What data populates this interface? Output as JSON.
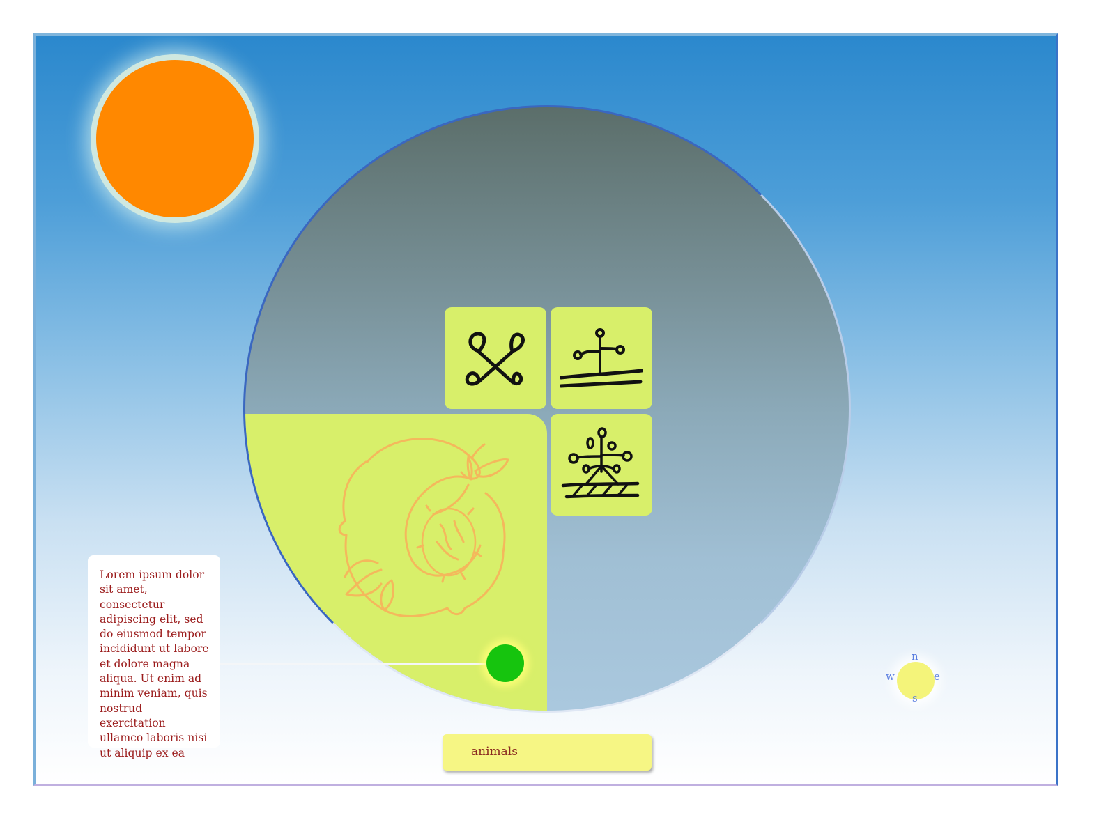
{
  "note": {
    "text": "Lorem ipsum dolor sit amet, consectetur adipiscing elit, sed do eiusmod tempor incididunt ut labore et dolore magna aliqua. Ut enim ad minim veniam, quis nostrud exercitation ullamco laboris nisi ut aliquip ex ea"
  },
  "category_field": {
    "value": "animals"
  },
  "compass": {
    "north": "n",
    "south": "s",
    "east": "e",
    "west": "w"
  },
  "icons": {
    "sun": "sun-icon",
    "peach": "peach-illustration",
    "tile_1": "crossed-symbol-icon",
    "tile_2": "horizon-symbol-icon",
    "tile_3": "tree-symbol-icon",
    "marker": "location-marker-icon"
  },
  "colors": {
    "sun": "#ff8800",
    "panel": "#d8ef6a",
    "marker": "#16c40e",
    "note_text": "#9b1c1c",
    "field_bg": "#f6f684",
    "compass_text": "#5b7fe0"
  }
}
